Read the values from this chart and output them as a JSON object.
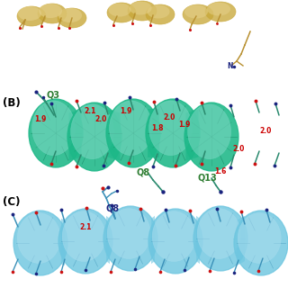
{
  "background_color": "#ffffff",
  "panel_B_label": "(B)",
  "panel_C_label": "(C)",
  "label_Q3": "Q3",
  "label_Q8_B": "Q8",
  "label_Q13": "Q13",
  "label_Q8_C": "Q8",
  "green_main": "#1db888",
  "green_dark": "#0e7a5a",
  "green_light": "#7dd9c5",
  "green_edge": "#0a6b4e",
  "blue_main": "#6ec6e0",
  "blue_dark": "#3a8fb5",
  "blue_light": "#aaddee",
  "blue_edge": "#2a7090",
  "gold_main": "#c8a83a",
  "gold_light": "#e5d08a",
  "gold_dark": "#a07820",
  "stick_green": "#2a8a6e",
  "stick_blue": "#3a90b8",
  "stick_gold": "#b89030",
  "N_color": "#1a237e",
  "O_color": "#cc1111",
  "label_green": "#2e7d32",
  "label_blue": "#1a237e",
  "dist_color": "#cc0000",
  "panel_label_color": "#000000"
}
